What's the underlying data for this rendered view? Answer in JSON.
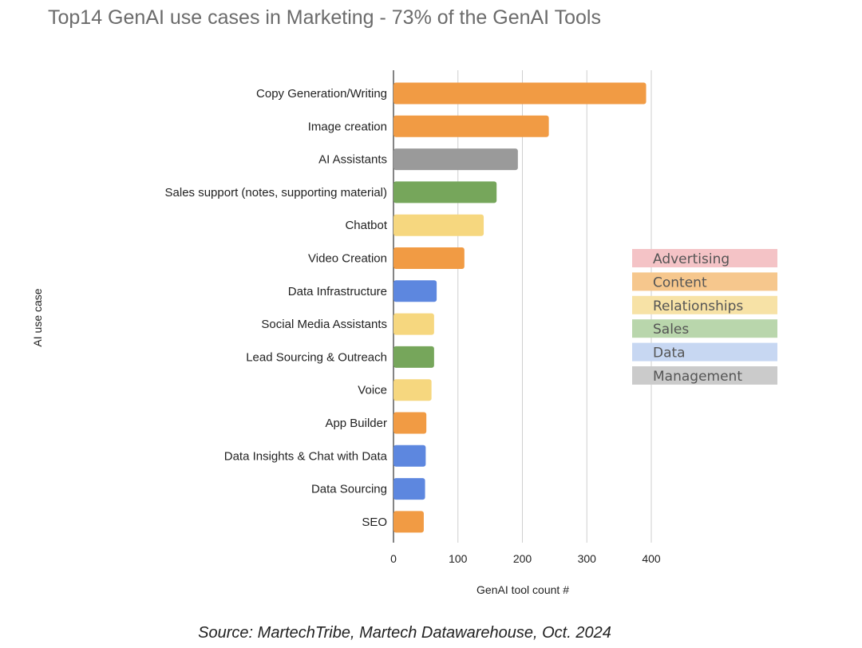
{
  "title": "Top14 GenAI use cases in Marketing - 73% of the GenAI Tools",
  "source": "Source: MartechTribe, Martech Datawarehouse, Oct. 2024",
  "chart_data": {
    "type": "bar",
    "orientation": "horizontal",
    "title": "Top14 GenAI use cases in Marketing - 73% of the GenAI Tools",
    "xlabel": "GenAI tool count #",
    "ylabel": "AI use case",
    "xlim": [
      0,
      400
    ],
    "xticks": [
      0,
      100,
      200,
      300,
      400
    ],
    "grid": true,
    "legend_position": "right",
    "categories": [
      "Copy Generation/Writing",
      "Image creation",
      "AI Assistants",
      "Sales support (notes, supporting material)",
      "Chatbot",
      "Video Creation",
      "Data Infrastructure",
      "Social Media Assistants",
      "Lead Sourcing & Outreach",
      "Voice",
      "App Builder",
      "Data Insights & Chat with Data",
      "Data Sourcing",
      "SEO"
    ],
    "values": [
      392,
      241,
      193,
      160,
      140,
      110,
      67,
      63,
      63,
      59,
      51,
      50,
      49,
      47
    ],
    "bar_groups": [
      "Content",
      "Content",
      "Management",
      "Sales",
      "Relationships",
      "Content",
      "Data",
      "Relationships",
      "Sales",
      "Relationships",
      "Content",
      "Data",
      "Data",
      "Content"
    ],
    "legend": [
      {
        "name": "Advertising",
        "color": "#f4c3c6"
      },
      {
        "name": "Content",
        "color": "#f6c78d"
      },
      {
        "name": "Relationships",
        "color": "#f7e2a6"
      },
      {
        "name": "Sales",
        "color": "#b9d6ac"
      },
      {
        "name": "Data",
        "color": "#c7d7f2"
      },
      {
        "name": "Management",
        "color": "#cbcbcb"
      }
    ],
    "bar_colors": {
      "Content": "#f19b44",
      "Management": "#9a9a9a",
      "Sales": "#76a65b",
      "Relationships": "#f6d77f",
      "Data": "#5d87df",
      "Advertising": "#e88a90"
    }
  }
}
